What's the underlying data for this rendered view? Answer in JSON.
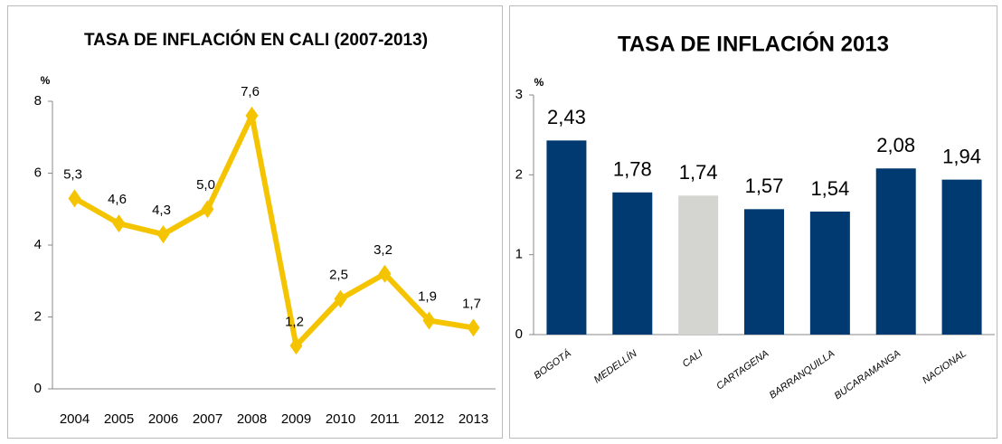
{
  "chart_data": [
    {
      "type": "line",
      "title": "TASA DE INFLACIÓN EN CALI (2007-2013)",
      "y_label": "%",
      "categories": [
        "2004",
        "2005",
        "2006",
        "2007",
        "2008",
        "2009",
        "2010",
        "2011",
        "2012",
        "2013"
      ],
      "values": [
        5.3,
        4.6,
        4.3,
        5.0,
        7.6,
        1.2,
        2.5,
        3.2,
        1.9,
        1.7
      ],
      "value_labels": [
        "5,3",
        "4,6",
        "4,3",
        "5,0",
        "7,6",
        "1,2",
        "2,5",
        "3,2",
        "1,9",
        "1,7"
      ],
      "color": "#f5c400",
      "ylim": [
        0,
        8
      ],
      "yticks": [
        0,
        2,
        4,
        6,
        8
      ]
    },
    {
      "type": "bar",
      "title": "TASA DE INFLACIÓN 2013",
      "y_label": "%",
      "categories": [
        "BOGOTÁ",
        "MEDELLÍN",
        "CALI",
        "CARTAGENA",
        "BARRANQUILLA",
        "BUCARAMANGA",
        "NACIONAL"
      ],
      "values": [
        2.43,
        1.78,
        1.74,
        1.57,
        1.54,
        2.08,
        1.94
      ],
      "value_labels": [
        "2,43",
        "1,78",
        "1,74",
        "1,57",
        "1,54",
        "2,08",
        "1,94"
      ],
      "colors": [
        "#003a70",
        "#003a70",
        "#d4d4d0",
        "#003a70",
        "#003a70",
        "#003a70",
        "#003a70"
      ],
      "ylim": [
        0,
        3
      ],
      "yticks": [
        0,
        1,
        2,
        3
      ]
    }
  ]
}
